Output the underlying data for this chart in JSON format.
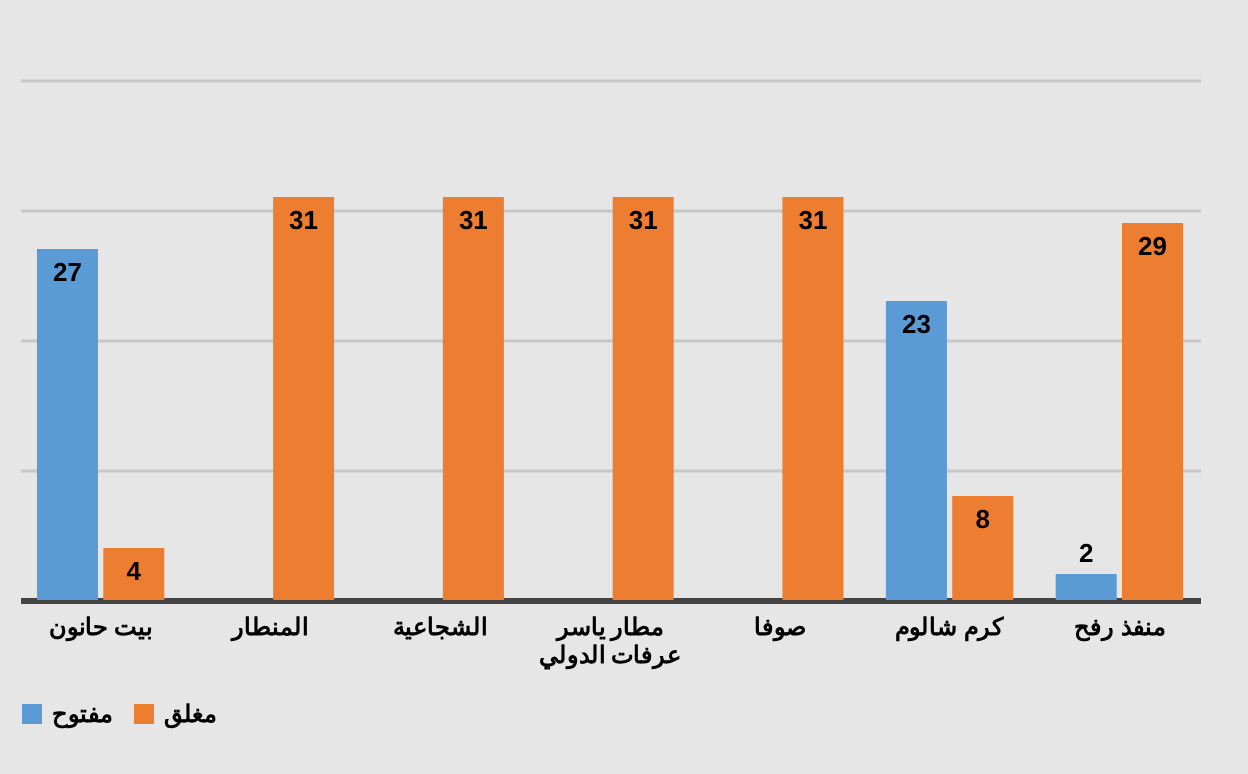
{
  "chart_data": {
    "type": "bar",
    "categories": [
      "بيت حانون",
      "المنطار",
      "الشجاعية",
      "مطار ياسر عرفات الدولي",
      "صوفا",
      "كرم شالوم",
      "منفذ رفح"
    ],
    "series": [
      {
        "name": "مفتوح",
        "color": "#5b9bd5",
        "values": [
          27,
          null,
          null,
          null,
          null,
          23,
          2
        ]
      },
      {
        "name": "مغلق",
        "color": "#ed7d31",
        "values": [
          4,
          31,
          31,
          31,
          31,
          8,
          29
        ]
      }
    ],
    "ylim": [
      0,
      40
    ],
    "yticks": [
      {
        "value": 0,
        "label": null
      },
      {
        "value": 10,
        "label": null
      },
      {
        "value": 20,
        "label": null
      },
      {
        "value": 30,
        "label": null
      },
      {
        "value": 40,
        "label": null
      }
    ],
    "grid": "y",
    "tick_labels": "x",
    "data_labels": true,
    "legend": "bottom"
  }
}
